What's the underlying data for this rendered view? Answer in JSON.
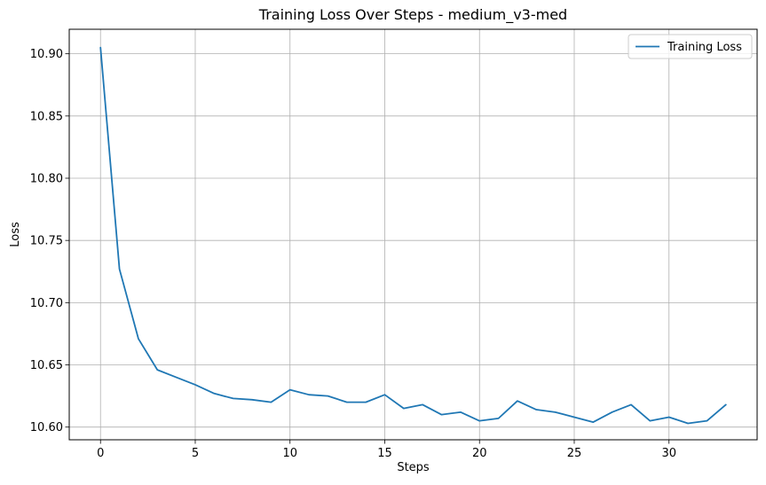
{
  "chart_data": {
    "type": "line",
    "title": "Training Loss Over Steps - medium_v3-med",
    "xlabel": "Steps",
    "ylabel": "Loss",
    "xlim": [
      -1.65,
      34.65
    ],
    "ylim": [
      10.5898,
      10.9197
    ],
    "x_ticks": [
      0,
      5,
      10,
      15,
      20,
      25,
      30
    ],
    "y_ticks": [
      10.6,
      10.65,
      10.7,
      10.75,
      10.8,
      10.85,
      10.9
    ],
    "y_tick_labels": [
      "10.60",
      "10.65",
      "10.70",
      "10.75",
      "10.80",
      "10.85",
      "10.90"
    ],
    "grid": true,
    "legend": {
      "position": "top-right",
      "entries": [
        "Training Loss"
      ]
    },
    "series": [
      {
        "name": "Training Loss",
        "color": "#1f77b4",
        "x": [
          0,
          1,
          2,
          3,
          4,
          5,
          6,
          7,
          8,
          9,
          10,
          11,
          12,
          13,
          14,
          15,
          16,
          17,
          18,
          19,
          20,
          21,
          22,
          23,
          24,
          25,
          26,
          27,
          28,
          29,
          30,
          31,
          32,
          33
        ],
        "values": [
          10.905,
          10.727,
          10.671,
          10.646,
          10.64,
          10.634,
          10.627,
          10.623,
          10.622,
          10.62,
          10.63,
          10.626,
          10.625,
          10.62,
          10.62,
          10.626,
          10.615,
          10.618,
          10.61,
          10.612,
          10.605,
          10.607,
          10.621,
          10.614,
          10.612,
          10.608,
          10.604,
          10.612,
          10.618,
          10.605,
          10.608,
          10.603,
          10.605,
          10.618
        ]
      }
    ]
  }
}
